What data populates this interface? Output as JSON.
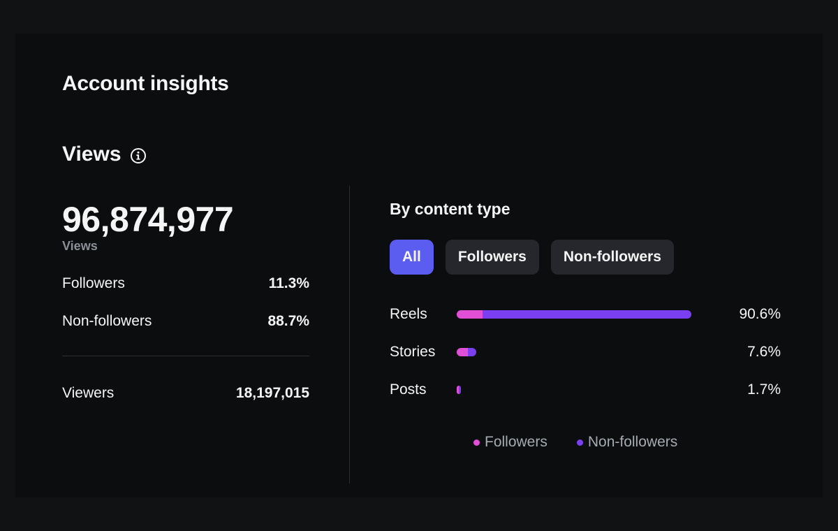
{
  "page": {
    "title": "Account insights"
  },
  "views_section": {
    "title": "Views",
    "info_icon": "info-icon",
    "total": "96,874,977",
    "total_caption": "Views",
    "followers_label": "Followers",
    "followers_value": "11.3%",
    "nonfollowers_label": "Non-followers",
    "nonfollowers_value": "88.7%",
    "viewers_label": "Viewers",
    "viewers_value": "18,197,015"
  },
  "content_type": {
    "title": "By content type",
    "filters": [
      {
        "label": "All",
        "active": true
      },
      {
        "label": "Followers",
        "active": false
      },
      {
        "label": "Non-followers",
        "active": false
      }
    ],
    "rows": [
      {
        "label": "Reels",
        "percent_label": "90.6%",
        "share": 0.906,
        "followers_fraction": 0.11
      },
      {
        "label": "Stories",
        "percent_label": "7.6%",
        "share": 0.076,
        "followers_fraction": 0.55
      },
      {
        "label": "Posts",
        "percent_label": "1.7%",
        "share": 0.017,
        "followers_fraction": 0.4
      }
    ],
    "legend": [
      {
        "label": "Followers",
        "color": "#e14fd6"
      },
      {
        "label": "Non-followers",
        "color": "#7a3ff0"
      }
    ]
  },
  "colors": {
    "accent": "#5b5cf0",
    "followers": "#e14fd6",
    "nonfollowers": "#7a3ff0"
  }
}
